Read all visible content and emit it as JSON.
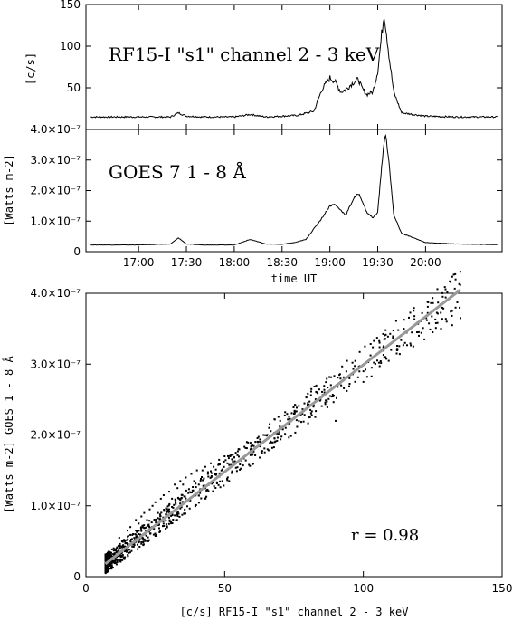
{
  "chart_data": [
    {
      "type": "line",
      "panel": "top",
      "title": "RF15-I \"s1\" channel 2 - 3 keV",
      "ylabel": "[c/s]",
      "xlabel": "",
      "ylim": [
        0,
        150
      ],
      "xlim": [
        "16:27",
        "20:48"
      ],
      "y_ticks": [
        "50",
        "100",
        "150"
      ],
      "y_tick_values": [
        50,
        100,
        150
      ],
      "x_tick_values": [
        "17:00",
        "17:30",
        "18:00",
        "18:30",
        "19:00",
        "19:30",
        "20:00"
      ],
      "x_tick_labels": [
        "",
        "",
        "",
        "",
        "",
        "",
        ""
      ],
      "series": [
        {
          "x": [
            "16:30",
            "17:00",
            "17:20",
            "17:25",
            "17:30",
            "17:40",
            "18:00",
            "18:10",
            "18:20",
            "18:30",
            "18:40",
            "18:50",
            "18:55",
            "19:00",
            "19:03",
            "19:07",
            "19:10",
            "19:15",
            "19:18",
            "19:20",
            "19:23",
            "19:27",
            "19:30",
            "19:32",
            "19:34",
            "19:35",
            "19:37",
            "19:40",
            "19:45",
            "20:00",
            "20:20",
            "20:45"
          ],
          "y": [
            15,
            15,
            15,
            20,
            16,
            15,
            15,
            18,
            15,
            16,
            17,
            22,
            48,
            62,
            58,
            45,
            48,
            57,
            60,
            50,
            42,
            45,
            70,
            105,
            140,
            125,
            90,
            45,
            20,
            16,
            15,
            15
          ]
        }
      ]
    },
    {
      "type": "line",
      "panel": "middle",
      "title": "GOES 7   1 - 8 Å",
      "ylabel": "[Watts m-2]",
      "xlabel": "time UT",
      "ylim": [
        0,
        4e-07
      ],
      "xlim": [
        "16:27",
        "20:48"
      ],
      "y_ticks": [
        "0",
        "1.0×10⁻⁷",
        "2.0×10⁻⁷",
        "3.0×10⁻⁷",
        "4.0×10⁻⁷"
      ],
      "y_tick_values": [
        0,
        1e-07,
        2e-07,
        3e-07,
        4e-07
      ],
      "x_tick_values": [
        "17:00",
        "17:30",
        "18:00",
        "18:30",
        "19:00",
        "19:30",
        "20:00"
      ],
      "x_tick_labels": [
        "17:00",
        "17:30",
        "18:00",
        "18:30",
        "19:00",
        "19:30",
        "20:00"
      ],
      "series": [
        {
          "x": [
            "16:30",
            "17:00",
            "17:20",
            "17:25",
            "17:30",
            "17:40",
            "18:00",
            "18:10",
            "18:20",
            "18:30",
            "18:38",
            "18:45",
            "18:55",
            "19:00",
            "19:03",
            "19:07",
            "19:10",
            "19:15",
            "19:18",
            "19:20",
            "19:23",
            "19:27",
            "19:30",
            "19:32",
            "19:34",
            "19:35",
            "19:37",
            "19:40",
            "19:45",
            "20:00",
            "20:20",
            "20:45"
          ],
          "y": [
            2.2e-08,
            2.2e-08,
            2.5e-08,
            4.5e-08,
            2.5e-08,
            2.2e-08,
            2.2e-08,
            4e-08,
            2.5e-08,
            2.4e-08,
            3e-08,
            4e-08,
            1.1e-07,
            1.5e-07,
            1.55e-07,
            1.35e-07,
            1.2e-07,
            1.75e-07,
            1.9e-07,
            1.7e-07,
            1.3e-07,
            1.1e-07,
            1.3e-07,
            2.5e-07,
            3.6e-07,
            3.8e-07,
            3e-07,
            1.2e-07,
            6e-08,
            3e-08,
            2.5e-08,
            2.3e-08
          ]
        }
      ]
    },
    {
      "type": "scatter",
      "panel": "bottom",
      "title": "",
      "xlabel": "[c/s] RF15-I \"s1\" channel 2 - 3 keV",
      "ylabel": "[Watts m-2] GOES 1 - 8 Å",
      "xlim": [
        0,
        150
      ],
      "ylim": [
        0,
        4e-07
      ],
      "x_ticks": [
        "0",
        "50",
        "100",
        "150"
      ],
      "x_tick_values": [
        0,
        50,
        100,
        150
      ],
      "y_ticks": [
        "0",
        "1.0×10⁻⁷",
        "2.0×10⁻⁷",
        "3.0×10⁻⁷",
        "4.0×10⁻⁷"
      ],
      "y_tick_values": [
        0,
        1e-07,
        2e-07,
        3e-07,
        4e-07
      ],
      "annotation": "r = 0.98",
      "fit_line": {
        "x": [
          7,
          135
        ],
        "y": [
          1.8e-08,
          4.05e-07
        ]
      },
      "points": {
        "x": [
          8,
          9,
          10,
          10,
          11,
          12,
          12,
          13,
          14,
          15,
          15,
          16,
          17,
          18,
          18,
          19,
          20,
          21,
          22,
          23,
          24,
          25,
          26,
          27,
          28,
          30,
          31,
          32,
          33,
          34,
          35,
          36,
          38,
          39,
          40,
          42,
          43,
          44,
          45,
          46,
          48,
          50,
          51,
          52,
          54,
          55,
          56,
          58,
          60,
          62,
          64,
          66,
          68,
          70,
          72,
          75,
          78,
          80,
          82,
          84,
          86,
          88,
          90,
          92,
          95,
          97,
          100,
          103,
          105,
          108,
          110,
          112,
          115,
          118,
          120,
          122,
          125,
          128,
          130,
          132,
          135
        ],
        "y": [
          2.5e-08,
          3e-08,
          2e-08,
          4e-08,
          3.5e-08,
          4e-08,
          5.5e-08,
          5e-08,
          5e-08,
          4.5e-08,
          6.5e-08,
          7e-08,
          6e-08,
          8e-08,
          6.5e-08,
          7.5e-08,
          8.5e-08,
          9e-08,
          8e-08,
          9.5e-08,
          1e-07,
          1.05e-07,
          9e-08,
          1.1e-07,
          1.15e-07,
          1.2e-07,
          1.1e-07,
          1.3e-07,
          1.25e-07,
          1.35e-07,
          1.3e-07,
          1.4e-07,
          1.45e-07,
          1.35e-07,
          1.5e-07,
          1.5e-07,
          1.55e-07,
          1.45e-07,
          1.6e-07,
          1.55e-07,
          1.65e-07,
          1.7e-07,
          1.6e-07,
          1.7e-07,
          1.75e-07,
          1.8e-07,
          1.65e-07,
          1.9e-07,
          1.85e-07,
          1.9e-07,
          2e-07,
          2.1e-07,
          1.95e-07,
          2.2e-07,
          2.1e-07,
          2.3e-07,
          2.3e-07,
          2.45e-07,
          2.4e-07,
          2.5e-07,
          2.6e-07,
          2.55e-07,
          2.2e-07,
          2.7e-07,
          2.8e-07,
          2.75e-07,
          2.9e-07,
          2.95e-07,
          3.05e-07,
          3.1e-07,
          3.2e-07,
          3.15e-07,
          3.3e-07,
          3.25e-07,
          3.4e-07,
          3.35e-07,
          3.45e-07,
          3.5e-07,
          3.6e-07,
          3.55e-07,
          3.65e-07
        ]
      }
    }
  ]
}
